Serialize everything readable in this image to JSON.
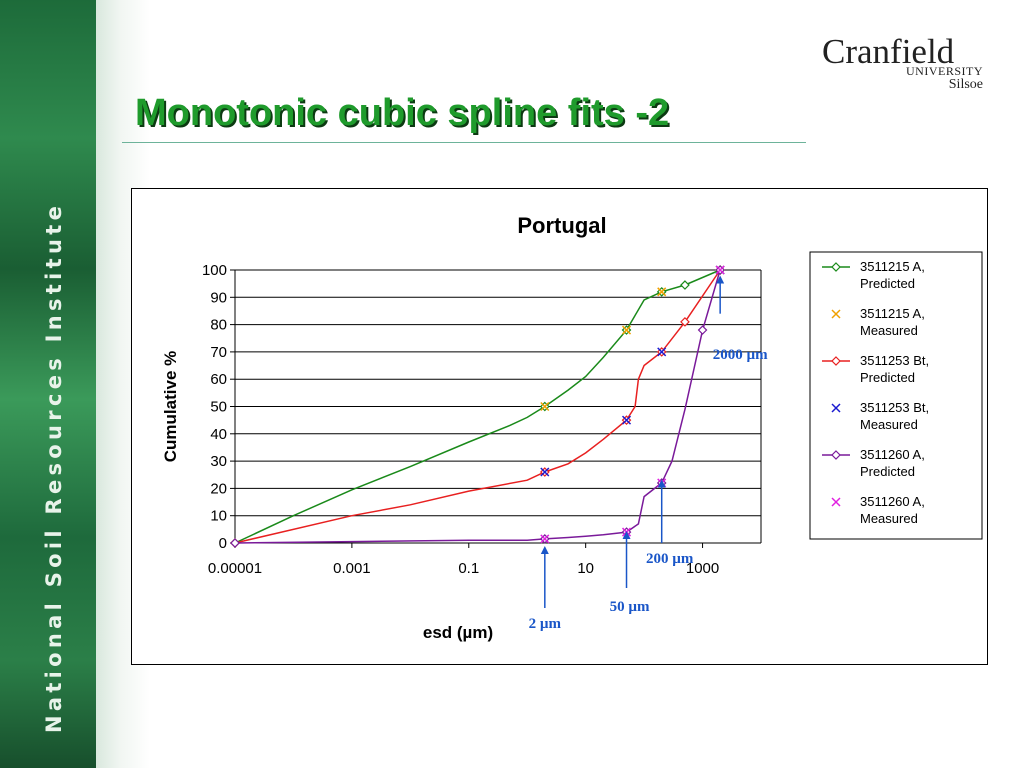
{
  "slide": {
    "title": "Monotonic cubic spline fits -2",
    "sidebar_text": "National Soil Resources Institute",
    "logo": {
      "name": "Cranfield",
      "line2": "UNIVERSITY",
      "line3": "Silsoe"
    }
  },
  "chart_data": {
    "type": "line",
    "title": "Portugal",
    "xlabel": "esd (µm)",
    "ylabel": "Cumulative %",
    "x_scale": "log",
    "xlim": [
      1e-05,
      10000
    ],
    "ylim": [
      0,
      100
    ],
    "x_ticks": [
      {
        "value": 1e-05,
        "label": "0.00001"
      },
      {
        "value": 0.001,
        "label": "0.001"
      },
      {
        "value": 0.1,
        "label": "0.1"
      },
      {
        "value": 10,
        "label": "10"
      },
      {
        "value": 1000,
        "label": "1000"
      }
    ],
    "y_ticks": [
      0,
      10,
      20,
      30,
      40,
      50,
      60,
      70,
      80,
      90,
      100
    ],
    "grid": "horizontal",
    "legend_position": "right",
    "series": [
      {
        "name": "3511215 A, Predicted",
        "color": "#1a8a1a",
        "marker": "diamond",
        "line": true,
        "points": [
          [
            1e-05,
            0
          ],
          [
            0.0001,
            10
          ],
          [
            0.001,
            19.5
          ],
          [
            0.01,
            28
          ],
          [
            0.1,
            37
          ],
          [
            0.5,
            43
          ],
          [
            1,
            46
          ],
          [
            2,
            50
          ],
          [
            5,
            56
          ],
          [
            10,
            61
          ],
          [
            20,
            68
          ],
          [
            50,
            78
          ],
          [
            100,
            89
          ],
          [
            200,
            92
          ],
          [
            500,
            94.5
          ],
          [
            2000,
            100
          ]
        ]
      },
      {
        "name": "3511215 A, Measured",
        "color": "#f0a000",
        "marker": "x",
        "line": false,
        "points": [
          [
            2,
            50
          ],
          [
            50,
            78
          ],
          [
            200,
            92
          ],
          [
            2000,
            100
          ]
        ]
      },
      {
        "name": "3511253 Bt, Predicted",
        "color": "#e82020",
        "marker": "diamond",
        "line": true,
        "points": [
          [
            1e-05,
            0
          ],
          [
            0.001,
            10
          ],
          [
            0.01,
            14
          ],
          [
            0.1,
            19
          ],
          [
            1,
            23
          ],
          [
            2,
            26
          ],
          [
            5,
            29
          ],
          [
            10,
            33
          ],
          [
            20,
            38
          ],
          [
            50,
            45
          ],
          [
            70,
            50
          ],
          [
            80,
            60
          ],
          [
            100,
            65
          ],
          [
            200,
            70
          ],
          [
            500,
            81
          ],
          [
            2000,
            100
          ]
        ]
      },
      {
        "name": "3511253 Bt, Measured",
        "color": "#1a1ad0",
        "marker": "x",
        "line": false,
        "points": [
          [
            2,
            26
          ],
          [
            50,
            45
          ],
          [
            200,
            70
          ],
          [
            2000,
            100
          ]
        ]
      },
      {
        "name": "3511260 A, Predicted",
        "color": "#7a1a9a",
        "marker": "diamond",
        "line": true,
        "points": [
          [
            1e-05,
            0
          ],
          [
            0.001,
            0.5
          ],
          [
            0.1,
            1
          ],
          [
            1,
            1
          ],
          [
            2,
            1.5
          ],
          [
            5,
            2
          ],
          [
            10,
            2.5
          ],
          [
            20,
            3
          ],
          [
            50,
            4
          ],
          [
            80,
            7
          ],
          [
            100,
            17
          ],
          [
            200,
            22
          ],
          [
            300,
            30
          ],
          [
            500,
            49
          ],
          [
            1000,
            78
          ],
          [
            2000,
            100
          ]
        ]
      },
      {
        "name": "3511260 A, Measured",
        "color": "#e020e0",
        "marker": "x",
        "line": false,
        "points": [
          [
            2,
            1.5
          ],
          [
            50,
            4
          ],
          [
            200,
            22
          ],
          [
            2000,
            100
          ]
        ]
      }
    ],
    "annotations": [
      {
        "text": "2 µm",
        "x": 2,
        "y": 0
      },
      {
        "text": "50 µm",
        "x": 50,
        "y": 0
      },
      {
        "text": "200 µm",
        "x": 200,
        "y": 22
      },
      {
        "text": "2000 µm",
        "x": 2000,
        "y": 100
      }
    ]
  }
}
